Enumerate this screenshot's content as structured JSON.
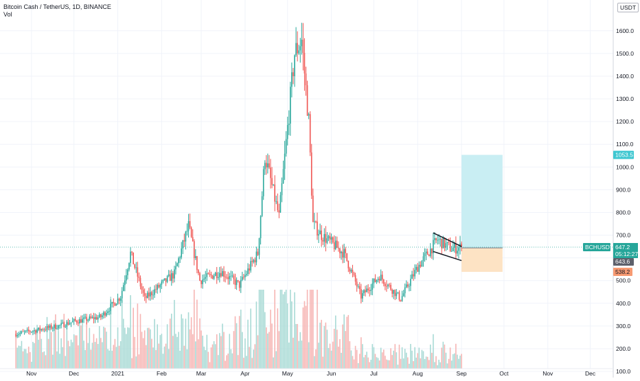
{
  "header": {
    "symbol_line": "Bitcoin Cash / TetherUS, 1D, BINANCE",
    "volume_label": "Vol",
    "currency": "USDT"
  },
  "colors": {
    "up": "#26a69a",
    "down": "#ef5350",
    "up_volume": "#a8dad5",
    "down_volume": "#f6b5b3",
    "target_zone": "#c9eef3",
    "stop_zone": "#fde3c4",
    "price_line": "#26a69a",
    "target_tag": "#3fc7d1",
    "stop_tag": "#f79a72",
    "ticker_tag": "#26a69a",
    "entry_tag": "#5d606b"
  },
  "chart_data": {
    "type": "candlestick",
    "title": "Bitcoin Cash / TetherUS, 1D, BINANCE",
    "x_ticks": [
      "Nov",
      "Dec",
      "2021",
      "Feb",
      "Mar",
      "Apr",
      "May",
      "Jun",
      "Jul",
      "Aug",
      "Sep",
      "Oct",
      "Nov",
      "Dec"
    ],
    "y_ticks": [
      100,
      200,
      300,
      400,
      500,
      600,
      700,
      800,
      900,
      1000,
      1100,
      1200,
      1300,
      1400,
      1500,
      1600
    ],
    "y_ticks_labels": [
      "100.0",
      "200.0",
      "300.0",
      "400.0",
      "500.0",
      "600.0",
      "700.0",
      "800.0",
      "900.0",
      "1000.0",
      "1100.0",
      "1200.0",
      "1300.0",
      "1400.0",
      "1500.0",
      "1600.0"
    ],
    "ylim": [
      88,
      1690
    ],
    "grid": true,
    "candles_summary": {
      "start": "2020-10-21",
      "end": "2021-09-01",
      "low_point": 255,
      "peak_high": 1635,
      "peak_date": "2021-05-11",
      "last_close": 647.2
    },
    "key_prices": [
      {
        "date": "2020-10-21",
        "price": 265
      },
      {
        "date": "2020-11-20",
        "price": 300
      },
      {
        "date": "2020-12-01",
        "price": 320
      },
      {
        "date": "2020-12-20",
        "price": 340
      },
      {
        "date": "2021-01-03",
        "price": 430
      },
      {
        "date": "2021-01-10",
        "price": 620
      },
      {
        "date": "2021-01-20",
        "price": 420
      },
      {
        "date": "2021-02-10",
        "price": 530
      },
      {
        "date": "2021-02-20",
        "price": 740
      },
      {
        "date": "2021-02-28",
        "price": 500
      },
      {
        "date": "2021-03-15",
        "price": 540
      },
      {
        "date": "2021-03-28",
        "price": 480
      },
      {
        "date": "2021-04-10",
        "price": 620
      },
      {
        "date": "2021-04-15",
        "price": 1050
      },
      {
        "date": "2021-04-25",
        "price": 780
      },
      {
        "date": "2021-05-06",
        "price": 1500
      },
      {
        "date": "2021-05-11",
        "price": 1560
      },
      {
        "date": "2021-05-16",
        "price": 1200
      },
      {
        "date": "2021-05-19",
        "price": 750
      },
      {
        "date": "2021-05-25",
        "price": 700
      },
      {
        "date": "2021-06-10",
        "price": 620
      },
      {
        "date": "2021-06-22",
        "price": 430
      },
      {
        "date": "2021-07-05",
        "price": 520
      },
      {
        "date": "2021-07-20",
        "price": 420
      },
      {
        "date": "2021-08-01",
        "price": 560
      },
      {
        "date": "2021-08-15",
        "price": 680
      },
      {
        "date": "2021-08-25",
        "price": 640
      },
      {
        "date": "2021-09-01",
        "price": 647
      }
    ],
    "pattern_lines": [
      {
        "from": {
          "date": "2021-08-12",
          "price": 710
        },
        "to": {
          "date": "2021-09-01",
          "price": 650
        }
      },
      {
        "from": {
          "date": "2021-08-12",
          "price": 628
        },
        "to": {
          "date": "2021-09-01",
          "price": 588
        }
      }
    ],
    "position": {
      "entry": 643.6,
      "target": 1053.5,
      "stop": 538.2,
      "start_date": "2021-09-01",
      "end_date": "2021-09-30"
    },
    "price_tags": [
      {
        "label": "1053.5",
        "value": 1053.5,
        "kind": "target"
      },
      {
        "label": "BCHUSDT",
        "value": 647.2,
        "kind": "ticker_name"
      },
      {
        "label": "647.2",
        "value": 647.2,
        "kind": "ticker"
      },
      {
        "label": "05:12:27",
        "value": 647.2,
        "kind": "countdown"
      },
      {
        "label": "643.6",
        "value": 643.6,
        "kind": "entry"
      },
      {
        "label": "538.2",
        "value": 538.2,
        "kind": "stop"
      }
    ]
  }
}
